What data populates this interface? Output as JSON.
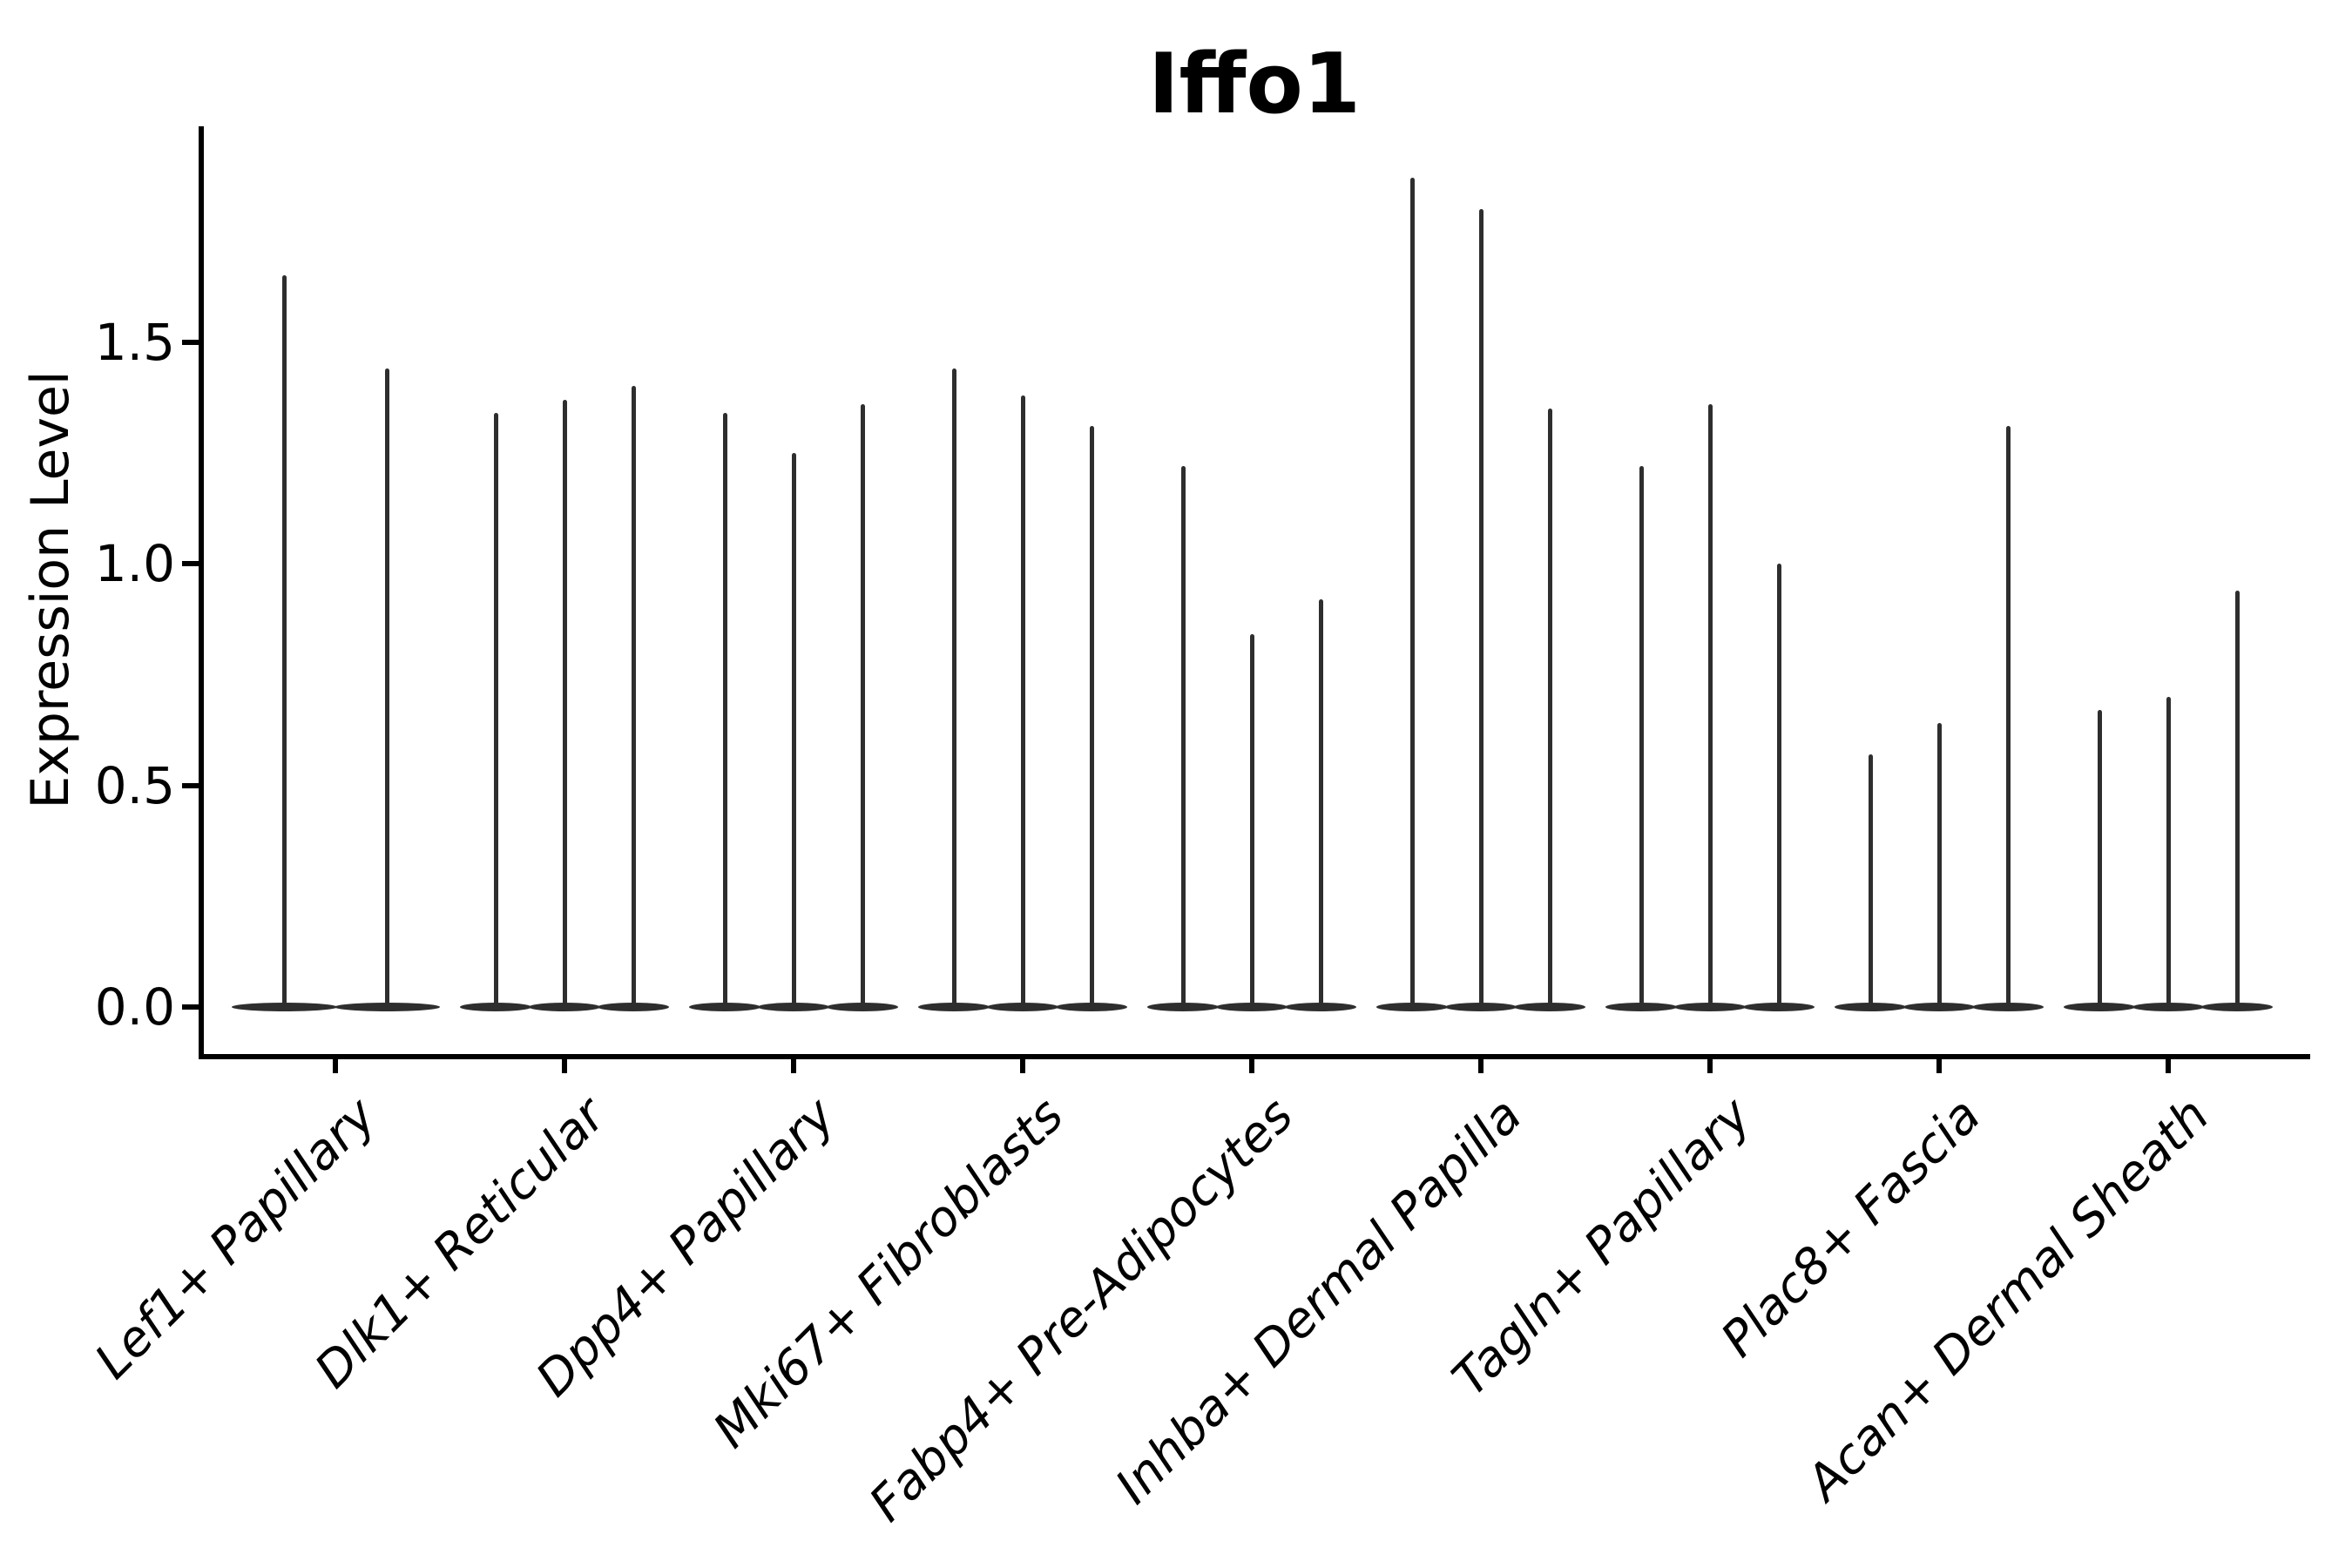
{
  "header": {
    "title": "Iffo1"
  },
  "axes": {
    "y_label": "Expression Level",
    "y_tick_labels": [
      "0.0",
      "0.5",
      "1.0",
      "1.5"
    ]
  },
  "chart_data": {
    "type": "violin",
    "title": "Iffo1",
    "xlabel": "",
    "ylabel": "Expression Level",
    "ytick_values": [
      0.0,
      0.5,
      1.0,
      1.5
    ],
    "ylim": [
      -0.11,
      1.99
    ],
    "grid": false,
    "legend": "none",
    "background": "#ffffff",
    "violin_color": "#2e2e2e",
    "text_color": "#000000",
    "description": "Thin spike violins; bulk of density flattened at 0, each spike rises to the max expression value of that violin",
    "categories": [
      "Lef1+ Papillary",
      "Dlk1+ Reticular",
      "Dpp4+ Papillary",
      "Mki67+ Fibroblasts",
      "Fabp4+ Pre-Adipocytes",
      "Inhba+ Dermal Papilla",
      "Tagln+ Papillary",
      "Plac8+ Fascia",
      "Acan+ Dermal Sheath"
    ],
    "groups": [
      {
        "label": "Lef1+ Papillary",
        "spike_heights": [
          1.65,
          1.44
        ]
      },
      {
        "label": "Dlk1+ Reticular",
        "spike_heights": [
          1.34,
          1.37,
          1.4
        ]
      },
      {
        "label": "Dpp4+ Papillary",
        "spike_heights": [
          1.34,
          1.25,
          1.36
        ]
      },
      {
        "label": "Mki67+ Fibroblasts",
        "spike_heights": [
          1.44,
          1.38,
          1.31
        ]
      },
      {
        "label": "Fabp4+ Pre-Adipocytes",
        "spike_heights": [
          1.22,
          0.84,
          0.92
        ]
      },
      {
        "label": "Inhba+ Dermal Papilla",
        "spike_heights": [
          1.87,
          1.8,
          1.35
        ]
      },
      {
        "label": "Tagln+ Papillary",
        "spike_heights": [
          1.22,
          1.36,
          1.0
        ]
      },
      {
        "label": "Plac8+ Fascia",
        "spike_heights": [
          0.57,
          0.64,
          1.31
        ]
      },
      {
        "label": "Acan+ Dermal Sheath",
        "spike_heights": [
          0.67,
          0.7,
          0.94
        ]
      }
    ]
  }
}
